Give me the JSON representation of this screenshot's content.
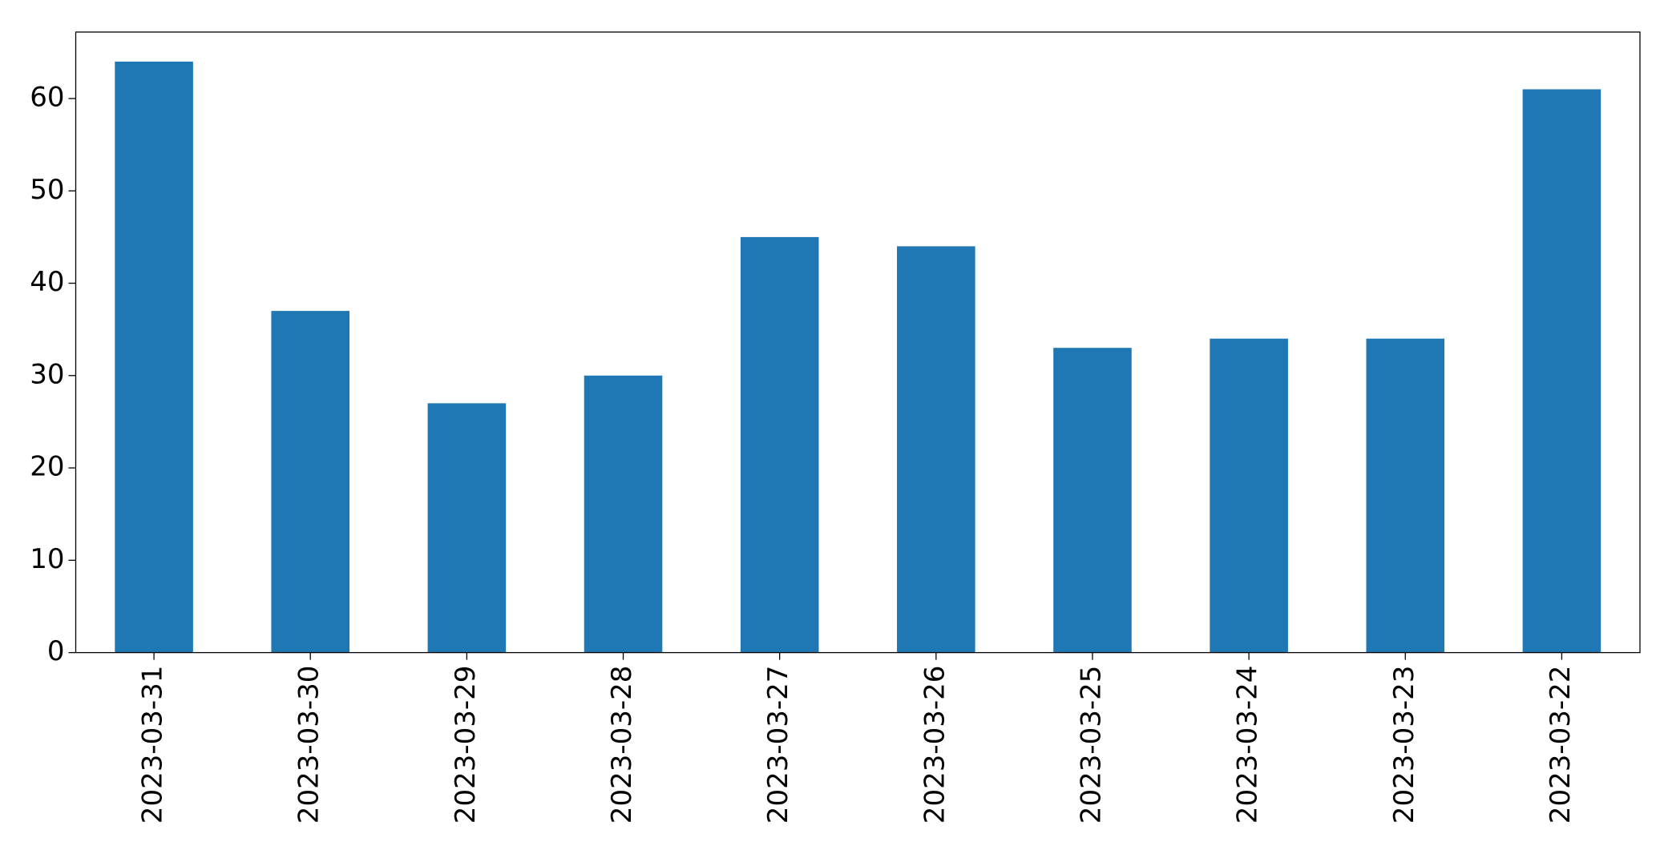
{
  "chart_data": {
    "type": "bar",
    "categories": [
      "2023-03-31",
      "2023-03-30",
      "2023-03-29",
      "2023-03-28",
      "2023-03-27",
      "2023-03-26",
      "2023-03-25",
      "2023-03-24",
      "2023-03-23",
      "2023-03-22"
    ],
    "values": [
      64,
      37,
      27,
      30,
      45,
      44,
      33,
      34,
      34,
      61
    ],
    "color": "#1f77b4",
    "ylim": [
      0,
      67.2
    ],
    "yticks": [
      0,
      10,
      20,
      30,
      40,
      50,
      60
    ],
    "grid": false
  }
}
